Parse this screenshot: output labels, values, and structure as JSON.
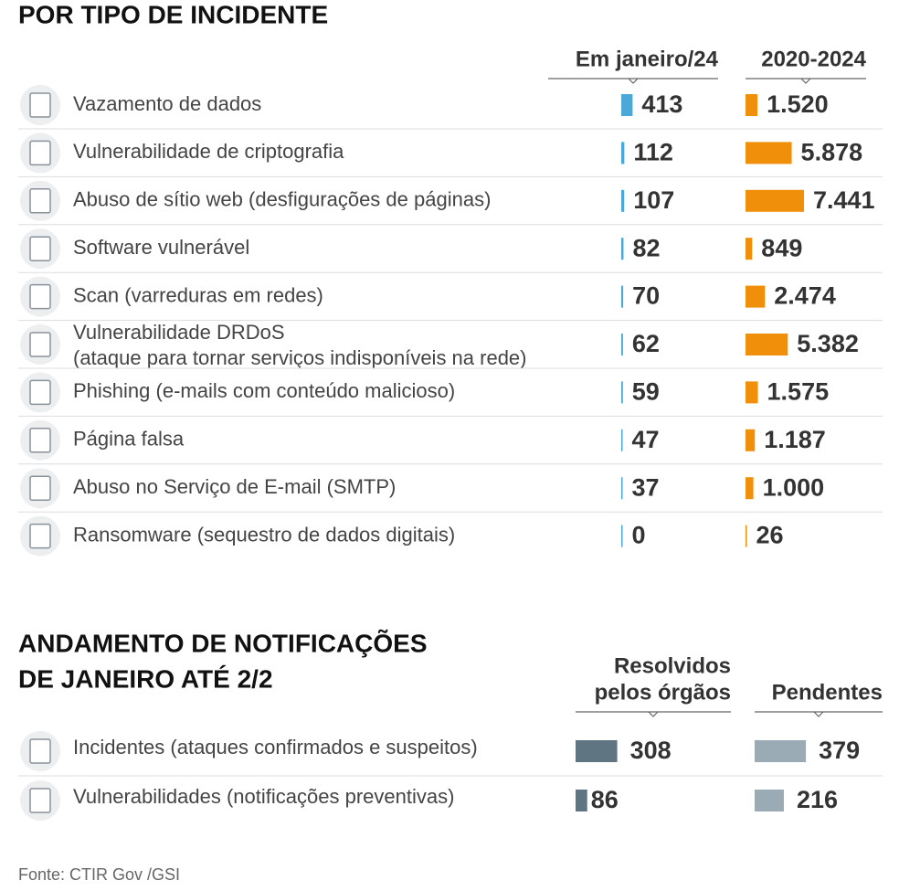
{
  "section1": {
    "title": "POR TIPO DE INCIDENTE",
    "columns": [
      "Em janeiro/24",
      "2020-2024"
    ],
    "colors": [
      "#4aa8d8",
      "#f0900a"
    ],
    "rows": [
      {
        "label": "Vazamento de dados",
        "values": [
          413,
          1520
        ],
        "value_labels": [
          "413",
          "1.520"
        ]
      },
      {
        "label": "Vulnerabilidade de criptografia",
        "values": [
          112,
          5878
        ],
        "value_labels": [
          "112",
          "5.878"
        ]
      },
      {
        "label": "Abuso de sítio web (desfigurações de páginas)",
        "values": [
          107,
          7441
        ],
        "value_labels": [
          "107",
          "7.441"
        ]
      },
      {
        "label": "Software vulnerável",
        "values": [
          82,
          849
        ],
        "value_labels": [
          "82",
          "849"
        ]
      },
      {
        "label": "Scan (varreduras em redes)",
        "values": [
          70,
          2474
        ],
        "value_labels": [
          "70",
          "2.474"
        ]
      },
      {
        "label": "Vulnerabilidade DRDoS",
        "sublabel": "(ataque para tornar serviços indisponíveis na rede)",
        "values": [
          62,
          5382
        ],
        "value_labels": [
          "62",
          "5.382"
        ]
      },
      {
        "label": "Phishing (e-mails com conteúdo malicioso)",
        "values": [
          59,
          1575
        ],
        "value_labels": [
          "59",
          "1.575"
        ]
      },
      {
        "label": "Página falsa",
        "values": [
          47,
          1187
        ],
        "value_labels": [
          "47",
          "1.187"
        ]
      },
      {
        "label": "Abuso no Serviço de E-mail (SMTP)",
        "values": [
          37,
          1000
        ],
        "value_labels": [
          "37",
          "1.000"
        ]
      },
      {
        "label": "Ransomware (sequestro de dados digitais)",
        "values": [
          0,
          26
        ],
        "value_labels": [
          "0",
          "26"
        ]
      }
    ]
  },
  "section2": {
    "title": [
      "ANDAMENTO DE NOTIFICAÇÕES",
      "DE JANEIRO ATÉ 2/2"
    ],
    "columns": [
      [
        "Resolvidos",
        "pelos órgãos"
      ],
      [
        "Pendentes"
      ]
    ],
    "colors": [
      "#5f7582",
      "#9aabb6"
    ],
    "rows": [
      {
        "label": "Incidentes (ataques confirmados e suspeitos)",
        "values": [
          308,
          379
        ],
        "value_labels": [
          "308",
          "379"
        ]
      },
      {
        "label": "Vulnerabilidades (notificações preventivas)",
        "values": [
          86,
          216
        ],
        "value_labels": [
          "86",
          "216"
        ]
      }
    ]
  },
  "source": "Fonte: CTIR Gov /GSI"
}
